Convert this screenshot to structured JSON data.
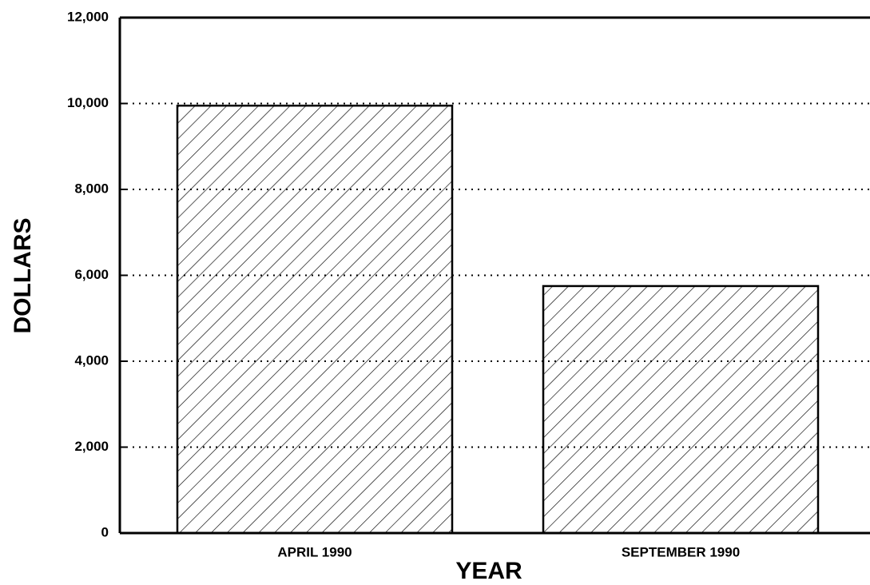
{
  "chart_data": {
    "type": "bar",
    "x_label": "YEAR",
    "y_label": "DOLLARS",
    "categories": [
      "APRIL 1990",
      "SEPTEMBER 1990"
    ],
    "values": [
      9950,
      5750
    ],
    "color": "#000000",
    "ylim": [
      0,
      12000
    ],
    "yticks": [
      0,
      {
        "value": 2000,
        "label": "2,000"
      },
      {
        "value": 4000,
        "label": "4,000"
      },
      {
        "value": 6000,
        "label": "6,000"
      },
      {
        "value": 8000,
        "label": "8,000"
      },
      {
        "value": 10000,
        "label": "10,000"
      },
      {
        "value": 12000,
        "label": "12,000"
      }
    ],
    "grid": true
  }
}
